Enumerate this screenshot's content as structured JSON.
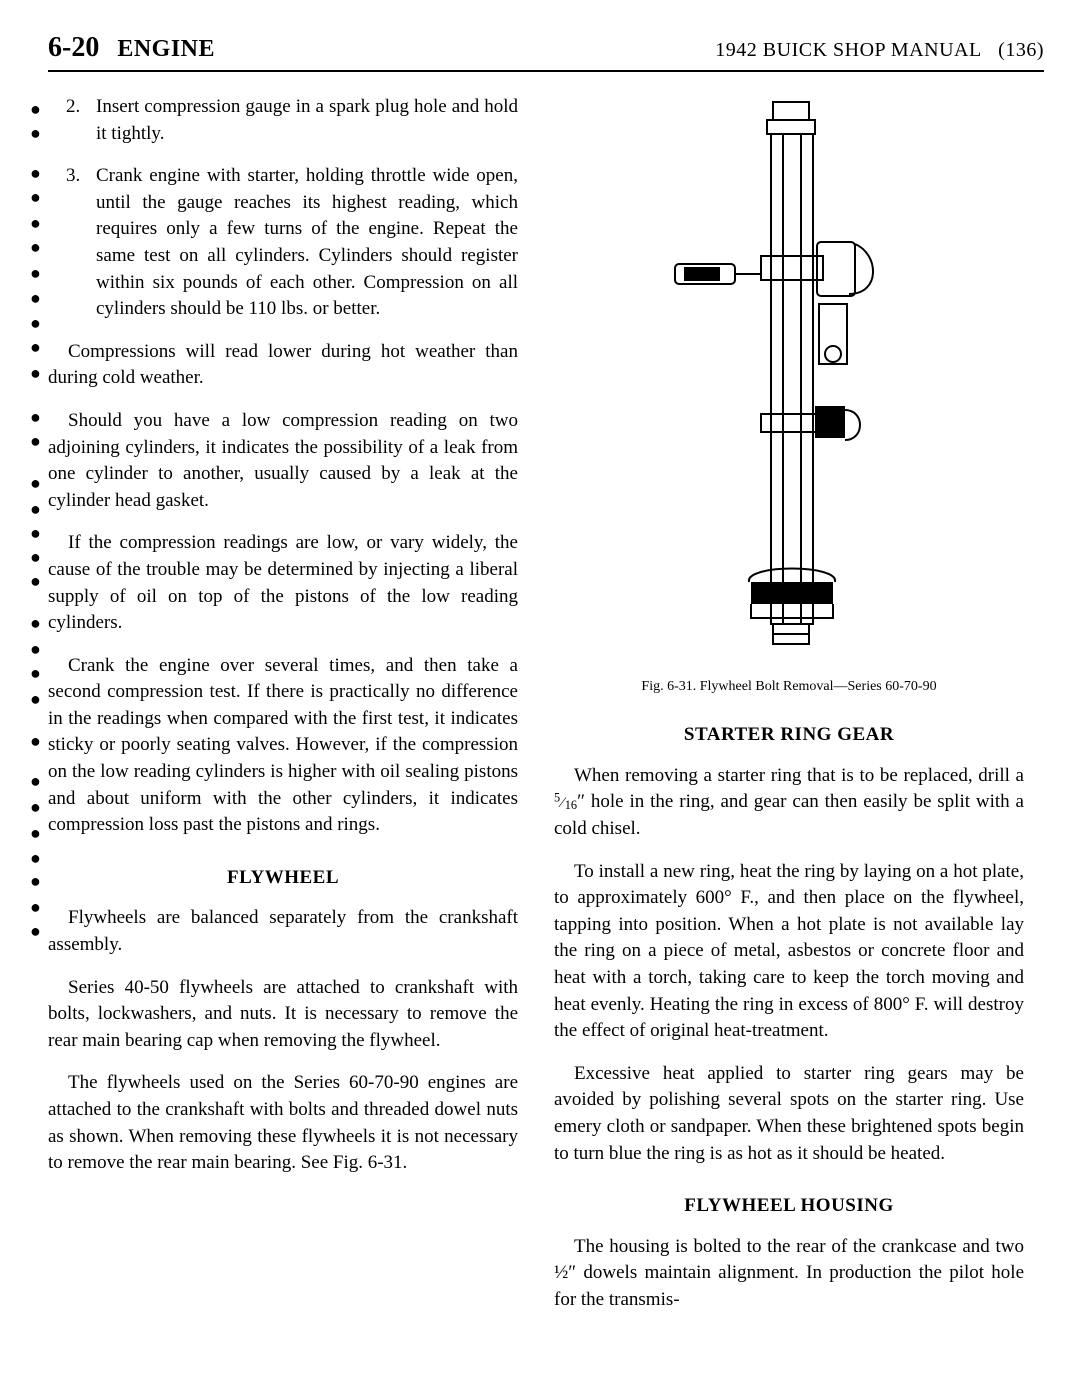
{
  "header": {
    "page_number": "6-20",
    "section": "ENGINE",
    "manual_title": "1942 BUICK SHOP MANUAL",
    "manual_code": "(136)"
  },
  "left_column": {
    "item2_num": "2.",
    "item2_text": "Insert compression gauge in a spark plug hole and hold it tightly.",
    "item3_num": "3.",
    "item3_text": "Crank engine with starter, holding throttle wide open, until the gauge reaches its highest reading, which requires only a few turns of the engine. Repeat the same test on all cylinders. Cylinders should register within six pounds of each other. Compression on all cylinders should be 110 lbs. or better.",
    "para1": "Compressions will read lower during hot weather than during cold weather.",
    "para2": "Should you have a low compression reading on two adjoining cylinders, it indicates the possibility of a leak from one cylinder to another, usually caused by a leak at the cylinder head gasket.",
    "para3": "If the compression readings are low, or vary widely, the cause of the trouble may be determined by injecting a liberal supply of oil on top of the pistons of the low reading cylinders.",
    "para4": "Crank the engine over several times, and then take a second compression test. If there is practically no difference in the readings when compared with the first test, it indicates sticky or poorly seating valves. However, if the compression on the low reading cylinders is higher with oil sealing pistons and about uniform with the other cylinders, it indicates compression loss past the pistons and rings.",
    "flywheel_heading": "FLYWHEEL",
    "flywheel_p1": "Flywheels are balanced separately from the crankshaft assembly.",
    "flywheel_p2": "Series 40-50 flywheels are attached to crankshaft with bolts, lockwashers, and nuts. It is necessary to remove the rear main bearing cap when removing the flywheel.",
    "flywheel_p3": "The flywheels used on the Series 60-70-90 engines are attached to the crankshaft with bolts and threaded dowel nuts as shown. When removing these flywheels it is not necessary to remove the rear main bearing. See Fig. 6-31."
  },
  "right_column": {
    "figure_caption": "Fig. 6-31.   Flywheel Bolt Removal—Series 60-70-90",
    "starter_heading": "STARTER RING GEAR",
    "starter_p1a": "When removing a starter ring that is to be replaced, drill a ",
    "starter_p1_frac_n": "5",
    "starter_p1_frac_d": "16",
    "starter_p1b": "″ hole in the ring, and gear can then easily be split with a cold chisel.",
    "starter_p2": "To install a new ring, heat the ring by laying on a hot plate, to approximately 600° F., and then place on the flywheel, tapping into position. When a hot plate is not available lay the ring on a piece of metal, asbestos or concrete floor and heat with a torch, taking care to keep the torch moving and heat evenly. Heating the ring in excess of 800° F. will destroy the effect of original heat-treatment.",
    "starter_p3": "Excessive heat applied to starter ring gears may be avoided by polishing several spots on the starter ring. Use emery cloth or sandpaper. When these brightened spots begin to turn blue the ring is as hot as it should be heated.",
    "housing_heading": "FLYWHEEL HOUSING",
    "housing_p1a": "The housing is bolted to the rear of the crankcase and two ",
    "housing_p1_frac": "½",
    "housing_p1b": "″ dowels maintain alignment. In production the pilot hole for the transmis-"
  },
  "bullet_positions": [
    0,
    24,
    64,
    88,
    114,
    138,
    164,
    189,
    214,
    238,
    264,
    308,
    332,
    374,
    400,
    424,
    448,
    472,
    514,
    540,
    564,
    590,
    632,
    672,
    698,
    724,
    749,
    772,
    798,
    822
  ]
}
